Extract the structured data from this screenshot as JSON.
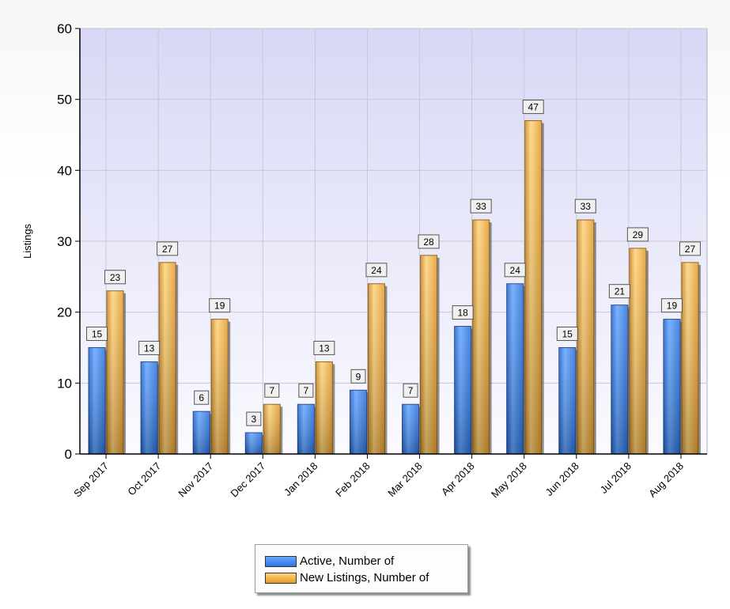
{
  "chart_data": {
    "type": "bar",
    "title": "",
    "xlabel": "",
    "ylabel": "Listings",
    "ylim": [
      0,
      60
    ],
    "yticks": [
      0,
      10,
      20,
      30,
      40,
      50,
      60
    ],
    "grid": true,
    "legend_position": "bottom-center",
    "categories": [
      "Sep 2017",
      "Oct 2017",
      "Nov 2017",
      "Dec 2017",
      "Jan 2018",
      "Feb 2018",
      "Mar 2018",
      "Apr 2018",
      "May 2018",
      "Jun 2018",
      "Jul 2018",
      "Aug 2018"
    ],
    "series": [
      {
        "name": "Active, Number of",
        "color": "#3f86f0",
        "values": [
          15,
          13,
          6,
          3,
          7,
          9,
          7,
          18,
          24,
          15,
          21,
          19
        ]
      },
      {
        "name": "New Listings, Number of",
        "color": "#f5b03e",
        "values": [
          23,
          27,
          19,
          7,
          13,
          24,
          28,
          33,
          47,
          33,
          29,
          27
        ]
      }
    ]
  }
}
